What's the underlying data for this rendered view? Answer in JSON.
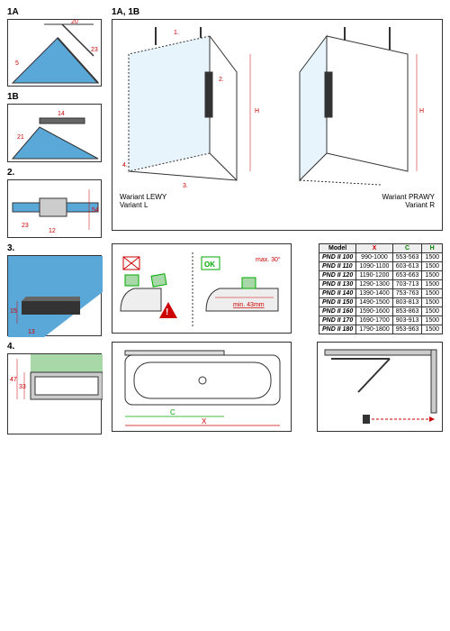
{
  "labels": {
    "l1a": "1A",
    "l1b": "1B",
    "l2": "2.",
    "l3": "3.",
    "l4": "4.",
    "l1a1b": "1A, 1B"
  },
  "captions": {
    "varL": "Wariant LEWY",
    "varL2": "Variant L",
    "varR": "Wariant PRAWY",
    "varR2": "Variant R"
  },
  "dims": {
    "d1a_20": "20",
    "d1a_23": "23",
    "d1a_5": "5",
    "d1b_14": "14",
    "d1b_21": "21",
    "d2_54": "54",
    "d2_23": "23",
    "d2_12": "12",
    "d3_15": "15",
    "d3_13": "13",
    "d4_47": "47",
    "d4_33": "33",
    "iso_H": "H",
    "iso_H2": "H",
    "iso_2": "2.",
    "iso_4": "4.",
    "iso_3": "3.",
    "iso_1": "1."
  },
  "install": {
    "ok": "OK",
    "max": "max. 30°",
    "min": "min. 43mm"
  },
  "bath": {
    "c": "C",
    "x": "X"
  },
  "table": {
    "headers": [
      "Model",
      "X",
      "C",
      "H"
    ],
    "rows": [
      [
        "PND II 100",
        "990-1000",
        "553-563",
        "1500"
      ],
      [
        "PND II 110",
        "1090-1100",
        "603-613",
        "1500"
      ],
      [
        "PND II 120",
        "1190-1200",
        "653-663",
        "1500"
      ],
      [
        "PND II 130",
        "1290-1300",
        "703-713",
        "1500"
      ],
      [
        "PND II 140",
        "1390-1400",
        "753-763",
        "1500"
      ],
      [
        "PND II 150",
        "1490-1500",
        "803-813",
        "1500"
      ],
      [
        "PND II 160",
        "1590-1600",
        "853-863",
        "1500"
      ],
      [
        "PND II 170",
        "1690-1700",
        "903-913",
        "1500"
      ],
      [
        "PND II 180",
        "1790-1800",
        "953-963",
        "1500"
      ]
    ]
  },
  "colors": {
    "glass": "#5aa8d8",
    "frame": "#333",
    "dim": "#c00",
    "green": "#0a0",
    "greenf": "#a8d8a8"
  }
}
